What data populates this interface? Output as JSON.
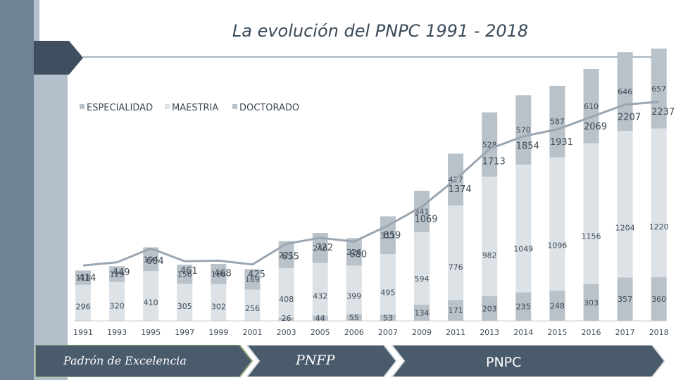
{
  "title": "La evolución del PNPC 1991 - 2018",
  "colors": {
    "especialidad": "#b9c1c9",
    "maestria": "#dde2e7",
    "doctorado": "#b9c1c9",
    "line": "#9aa6b1",
    "banner": "#4a5b6c",
    "sidebar_dark": "#6f8296",
    "sidebar_light": "#b3bfca"
  },
  "banners": {
    "padron": "Padrón de Excelencia",
    "pnfp": "PNFP",
    "pnpc": "PNPC"
  },
  "chart_data": {
    "type": "bar",
    "stacked": true,
    "title": "La evolución del PNPC 1991 - 2018",
    "legend_position": "top-left",
    "categories": [
      "1991",
      "1993",
      "1995",
      "1997",
      "1999",
      "2001",
      "2003",
      "2005",
      "2006",
      "2007",
      "2009",
      "2011",
      "2013",
      "2014",
      "2015",
      "2016",
      "2017",
      "2018"
    ],
    "series": [
      {
        "name": "ESPECIALIDAD",
        "values": [
          null,
          null,
          null,
          null,
          null,
          null,
          26,
          44,
          55,
          53,
          134,
          171,
          203,
          235,
          248,
          303,
          357,
          360
        ]
      },
      {
        "name": "MAESTRIA",
        "values": [
          296,
          320,
          410,
          305,
          302,
          256,
          408,
          432,
          399,
          495,
          594,
          776,
          982,
          1049,
          1096,
          1156,
          1204,
          1220
        ]
      },
      {
        "name": "DOCTORADO",
        "values": [
          118,
          129,
          194,
          156,
          166,
          169,
          221,
          246,
          226,
          311,
          341,
          427,
          528,
          570,
          587,
          610,
          646,
          657
        ]
      }
    ],
    "totals": {
      "name": "TOTAL",
      "values": [
        414,
        449,
        604,
        461,
        468,
        425,
        655,
        722,
        680,
        859,
        1069,
        1374,
        1713,
        1854,
        1931,
        2069,
        2207,
        2237
      ]
    }
  }
}
